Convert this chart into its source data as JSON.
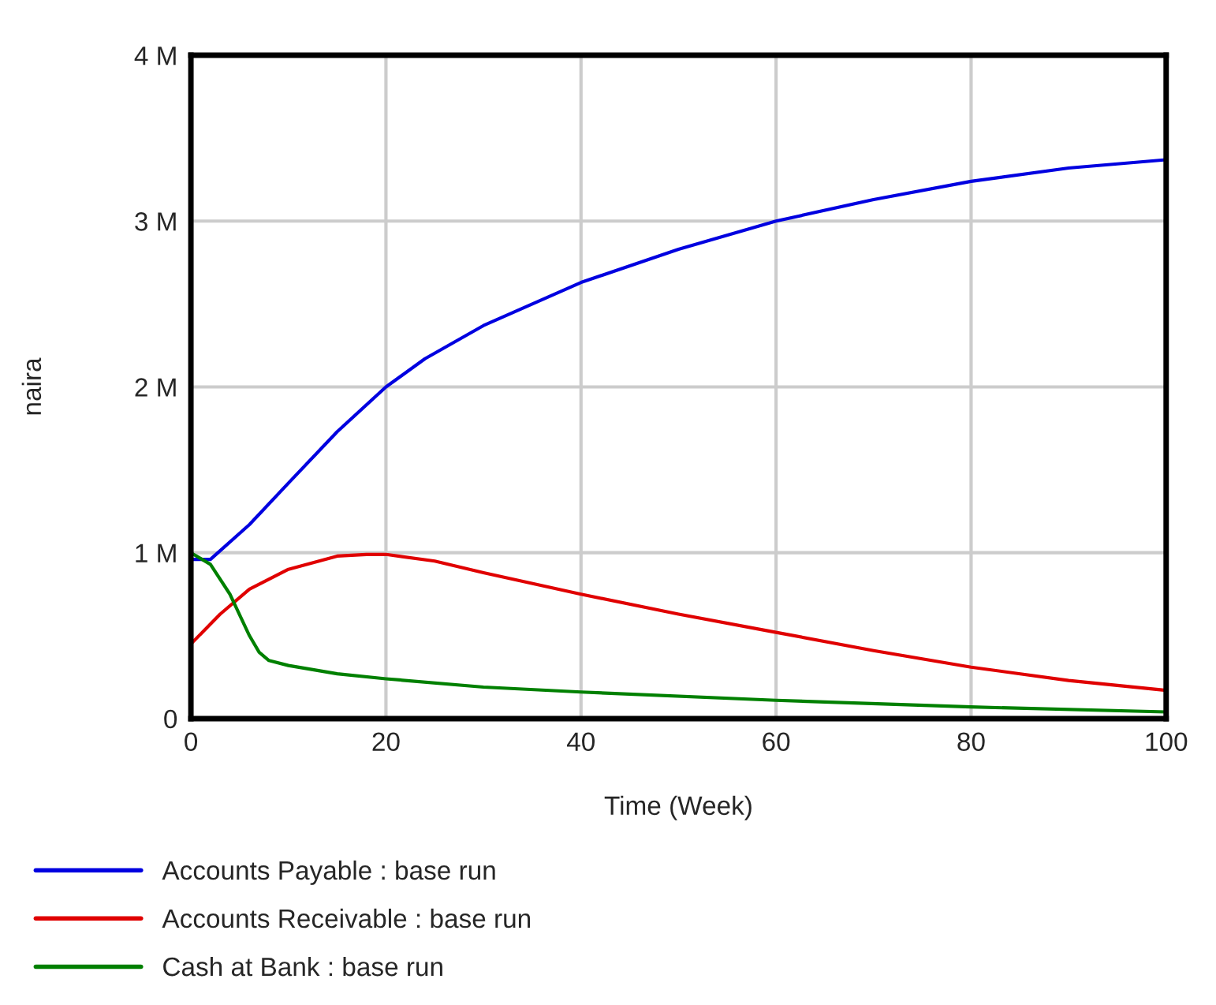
{
  "chart_data": {
    "type": "line",
    "xlabel": "Time (Week)",
    "ylabel": "naira",
    "xlim": [
      0,
      100
    ],
    "xticks": [
      0,
      20,
      40,
      60,
      80,
      100
    ],
    "ylim": [
      0,
      4000000
    ],
    "yticks": [
      0,
      {
        "value": 1000000,
        "label": "1 M"
      },
      {
        "value": 2000000,
        "label": "2 M"
      },
      {
        "value": 3000000,
        "label": "3 M"
      },
      {
        "value": 4000000,
        "label": "4 M"
      }
    ],
    "grid": true,
    "legend": "bottom",
    "line_style": "solid",
    "marker": "none",
    "series": [
      {
        "name": "Accounts Payable : base run",
        "color": "#0000e0",
        "x": [
          0,
          2,
          6,
          10,
          15,
          20,
          24,
          30,
          40,
          50,
          60,
          70,
          80,
          90,
          100
        ],
        "values": [
          960000,
          960000,
          1170000,
          1420000,
          1730000,
          2000000,
          2170000,
          2370000,
          2630000,
          2830000,
          3000000,
          3130000,
          3240000,
          3320000,
          3370000
        ]
      },
      {
        "name": "Accounts Receivable : base run",
        "color": "#e00000",
        "x": [
          0,
          3,
          6,
          10,
          15,
          18,
          20,
          25,
          30,
          40,
          50,
          60,
          70,
          80,
          90,
          100
        ],
        "values": [
          450000,
          630000,
          780000,
          900000,
          980000,
          990000,
          990000,
          950000,
          880000,
          750000,
          630000,
          520000,
          410000,
          310000,
          230000,
          170000
        ]
      },
      {
        "name": "Cash at Bank : base run",
        "color": "#008000",
        "x": [
          0,
          2,
          4,
          6,
          7,
          8,
          10,
          15,
          20,
          30,
          40,
          60,
          80,
          100
        ],
        "values": [
          1000000,
          930000,
          750000,
          500000,
          400000,
          350000,
          320000,
          270000,
          240000,
          190000,
          160000,
          110000,
          70000,
          40000
        ]
      }
    ]
  }
}
